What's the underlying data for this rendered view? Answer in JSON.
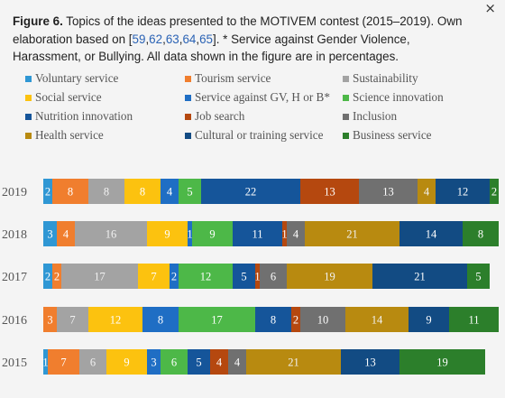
{
  "close_glyph": "×",
  "caption": {
    "label": "Figure 6.",
    "text_before": " Topics of the ideas presented to the MOTIVEM contest (2015–2019). Own elaboration based on [",
    "refs": [
      "59",
      "62",
      "63",
      "64",
      "65"
    ],
    "text_after": "]. * Service against Gender Violence, Harassment, or Bullying. All data shown in the figure are in percentages."
  },
  "chart_data": {
    "type": "bar",
    "orientation": "horizontal",
    "stacked": true,
    "xlim": [
      0,
      100
    ],
    "categories": [
      "2019",
      "2018",
      "2017",
      "2016",
      "2015"
    ],
    "series": [
      {
        "name": "Voluntary service",
        "color": "#2f97d4",
        "values": [
          2,
          3,
          2,
          0,
          1
        ]
      },
      {
        "name": "Tourism service",
        "color": "#f07e2e",
        "values": [
          8,
          4,
          2,
          3,
          7
        ]
      },
      {
        "name": "Sustainability",
        "color": "#a3a3a3",
        "values": [
          8,
          16,
          17,
          7,
          6
        ]
      },
      {
        "name": "Social service",
        "color": "#fcc20f",
        "values": [
          8,
          9,
          7,
          12,
          9
        ]
      },
      {
        "name": "Service against GV, H or B*",
        "color": "#1f6ec4",
        "values": [
          4,
          1,
          2,
          8,
          3
        ]
      },
      {
        "name": "Science innovation",
        "color": "#4db848",
        "values": [
          5,
          9,
          12,
          17,
          6
        ]
      },
      {
        "name": "Nutrition innovation",
        "color": "#15559a",
        "values": [
          22,
          11,
          5,
          8,
          5
        ]
      },
      {
        "name": "Job search",
        "color": "#b5480f",
        "values": [
          13,
          1,
          1,
          2,
          4
        ]
      },
      {
        "name": "Inclusion",
        "color": "#707070",
        "values": [
          13,
          4,
          6,
          10,
          4
        ]
      },
      {
        "name": "Health service",
        "color": "#b88a10",
        "values": [
          4,
          21,
          19,
          14,
          21
        ]
      },
      {
        "name": "Cultural or training service",
        "color": "#124b83",
        "values": [
          12,
          14,
          21,
          9,
          13
        ]
      },
      {
        "name": "Business service",
        "color": "#2c7f2b",
        "values": [
          2,
          8,
          5,
          11,
          19
        ]
      }
    ]
  }
}
